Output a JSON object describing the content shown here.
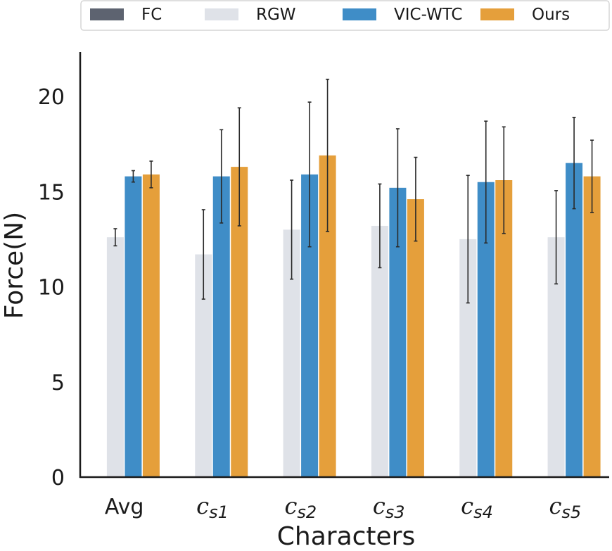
{
  "chart_data": {
    "type": "bar",
    "title": "",
    "xlabel": "Characters",
    "ylabel": "Force(N)",
    "ylim": [
      0,
      22
    ],
    "yticks": [
      0,
      5,
      10,
      15,
      20
    ],
    "legend_position": "top",
    "grid": false,
    "categories": [
      {
        "main": "Avg",
        "sub": ""
      },
      {
        "main": "c",
        "sub": "s1"
      },
      {
        "main": "c",
        "sub": "s2"
      },
      {
        "main": "c",
        "sub": "s3"
      },
      {
        "main": "c",
        "sub": "s4"
      },
      {
        "main": "c",
        "sub": "s5"
      }
    ],
    "series": [
      {
        "name": "FC",
        "color": "#5d6370",
        "values": [
          0,
          0,
          0,
          0,
          0,
          0
        ],
        "errors": [
          0,
          0,
          0,
          0,
          0,
          0
        ]
      },
      {
        "name": "RGW",
        "color": "#dfe2e8",
        "values": [
          12.6,
          11.7,
          13.0,
          13.2,
          12.5,
          12.6
        ],
        "errors": [
          0.45,
          2.35,
          2.6,
          2.2,
          3.35,
          2.45
        ]
      },
      {
        "name": "VIC-WTC",
        "color": "#3f8dc7",
        "values": [
          15.8,
          15.8,
          15.9,
          15.2,
          15.5,
          16.5
        ],
        "errors": [
          0.3,
          2.45,
          3.8,
          3.1,
          3.2,
          2.4
        ]
      },
      {
        "name": "Ours",
        "color": "#e59f3b",
        "values": [
          15.9,
          16.3,
          16.9,
          14.6,
          15.6,
          15.8
        ],
        "errors": [
          0.7,
          3.1,
          4.0,
          2.2,
          2.8,
          1.9
        ]
      }
    ]
  }
}
